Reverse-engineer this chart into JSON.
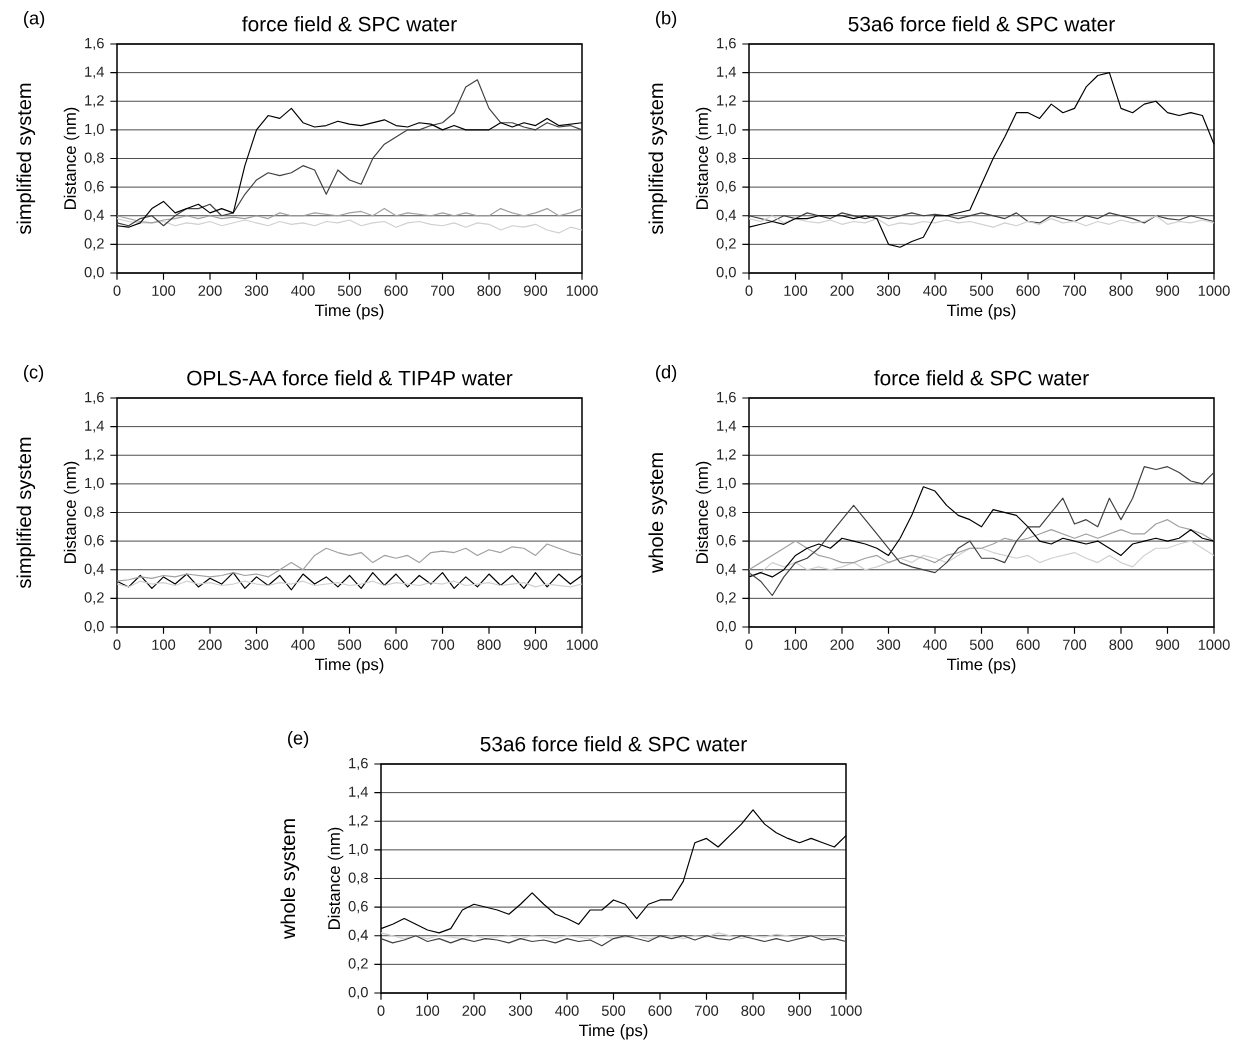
{
  "chart_data": [
    {
      "type": "line",
      "title": "force field & SPC water",
      "xlabel": "Time (ps)",
      "ylabel": "Distance (nm)",
      "annotations": [
        "(a)",
        "simplified system"
      ],
      "grid": "y",
      "xlim": [
        0,
        1000
      ],
      "ylim": [
        0,
        1.6
      ],
      "xticks": [
        0,
        100,
        200,
        300,
        400,
        500,
        600,
        700,
        800,
        900,
        1000
      ],
      "yticks": [
        {
          "value": 0,
          "label": "0,0"
        },
        {
          "value": 0.2,
          "label": "0,2"
        },
        {
          "value": 0.4,
          "label": "0,4"
        },
        {
          "value": 0.6,
          "label": "0,6"
        },
        {
          "value": 0.8,
          "label": "0,8"
        },
        {
          "value": 1.0,
          "label": "1,0"
        },
        {
          "value": 1.2,
          "label": "1,2"
        },
        {
          "value": 1.4,
          "label": "1,4"
        },
        {
          "value": 1.6,
          "label": "1,6"
        }
      ],
      "x": [
        0,
        25,
        50,
        75,
        100,
        125,
        150,
        175,
        200,
        225,
        250,
        275,
        300,
        325,
        350,
        375,
        400,
        425,
        450,
        475,
        500,
        525,
        550,
        575,
        600,
        625,
        650,
        675,
        700,
        725,
        750,
        775,
        800,
        825,
        850,
        875,
        900,
        925,
        950,
        975,
        1000
      ],
      "series": [
        {
          "color": "#d0d0d0",
          "values": [
            0.38,
            0.36,
            0.35,
            0.35,
            0.36,
            0.33,
            0.35,
            0.34,
            0.36,
            0.33,
            0.35,
            0.37,
            0.35,
            0.33,
            0.36,
            0.34,
            0.35,
            0.33,
            0.36,
            0.35,
            0.37,
            0.33,
            0.35,
            0.36,
            0.32,
            0.35,
            0.36,
            0.34,
            0.33,
            0.35,
            0.32,
            0.35,
            0.34,
            0.3,
            0.33,
            0.32,
            0.34,
            0.3,
            0.28,
            0.32,
            0.3
          ]
        },
        {
          "color": "#a0a0a0",
          "values": [
            0.4,
            0.38,
            0.36,
            0.35,
            0.37,
            0.38,
            0.4,
            0.38,
            0.4,
            0.38,
            0.39,
            0.38,
            0.4,
            0.38,
            0.42,
            0.4,
            0.4,
            0.42,
            0.41,
            0.4,
            0.42,
            0.43,
            0.4,
            0.45,
            0.4,
            0.42,
            0.41,
            0.4,
            0.42,
            0.4,
            0.42,
            0.4,
            0.4,
            0.45,
            0.42,
            0.4,
            0.42,
            0.45,
            0.4,
            0.42,
            0.45
          ]
        },
        {
          "color": "#404040",
          "values": [
            0.35,
            0.33,
            0.38,
            0.4,
            0.33,
            0.4,
            0.45,
            0.45,
            0.48,
            0.4,
            0.42,
            0.55,
            0.65,
            0.7,
            0.68,
            0.7,
            0.75,
            0.72,
            0.55,
            0.72,
            0.65,
            0.62,
            0.8,
            0.9,
            0.95,
            1.0,
            1.0,
            1.03,
            1.05,
            1.12,
            1.3,
            1.35,
            1.15,
            1.05,
            1.05,
            1.02,
            1.0,
            1.05,
            1.02,
            1.03,
            1.0
          ]
        },
        {
          "color": "#000000",
          "values": [
            0.33,
            0.32,
            0.35,
            0.45,
            0.5,
            0.42,
            0.45,
            0.48,
            0.42,
            0.45,
            0.42,
            0.75,
            1.0,
            1.1,
            1.08,
            1.15,
            1.05,
            1.02,
            1.03,
            1.06,
            1.04,
            1.03,
            1.05,
            1.07,
            1.03,
            1.02,
            1.05,
            1.04,
            1.0,
            1.03,
            1.0,
            1.0,
            1.0,
            1.05,
            1.02,
            1.05,
            1.03,
            1.08,
            1.03,
            1.04,
            1.05
          ]
        }
      ]
    },
    {
      "type": "line",
      "title": "53a6 force field & SPC water",
      "xlabel": "Time (ps)",
      "ylabel": "Distance (nm)",
      "annotations": [
        "(b)",
        "simplified system"
      ],
      "grid": "y",
      "xlim": [
        0,
        1000
      ],
      "ylim": [
        0,
        1.6
      ],
      "xticks": [
        0,
        100,
        200,
        300,
        400,
        500,
        600,
        700,
        800,
        900,
        1000
      ],
      "yticks": [
        {
          "value": 0,
          "label": "0,0"
        },
        {
          "value": 0.2,
          "label": "0,2"
        },
        {
          "value": 0.4,
          "label": "0,4"
        },
        {
          "value": 0.6,
          "label": "0,6"
        },
        {
          "value": 0.8,
          "label": "0,8"
        },
        {
          "value": 1.0,
          "label": "1,0"
        },
        {
          "value": 1.2,
          "label": "1,2"
        },
        {
          "value": 1.4,
          "label": "1,4"
        },
        {
          "value": 1.6,
          "label": "1,6"
        }
      ],
      "x": [
        0,
        25,
        50,
        75,
        100,
        125,
        150,
        175,
        200,
        225,
        250,
        275,
        300,
        325,
        350,
        375,
        400,
        425,
        450,
        475,
        500,
        525,
        550,
        575,
        600,
        625,
        650,
        675,
        700,
        725,
        750,
        775,
        800,
        825,
        850,
        875,
        900,
        925,
        950,
        975,
        1000
      ],
      "series": [
        {
          "color": "#404040",
          "values": [
            0.4,
            0.38,
            0.36,
            0.4,
            0.38,
            0.42,
            0.4,
            0.38,
            0.42,
            0.4,
            0.38,
            0.4,
            0.38,
            0.4,
            0.42,
            0.4,
            0.41,
            0.4,
            0.38,
            0.4,
            0.42,
            0.4,
            0.38,
            0.42,
            0.36,
            0.35,
            0.4,
            0.38,
            0.36,
            0.4,
            0.38,
            0.42,
            0.4,
            0.38,
            0.35,
            0.4,
            0.38,
            0.37,
            0.4,
            0.38,
            0.36
          ]
        },
        {
          "color": "#d0d0d0",
          "values": [
            0.38,
            0.36,
            0.4,
            0.35,
            0.38,
            0.36,
            0.35,
            0.37,
            0.34,
            0.36,
            0.35,
            0.38,
            0.33,
            0.35,
            0.34,
            0.36,
            0.35,
            0.37,
            0.35,
            0.36,
            0.34,
            0.32,
            0.35,
            0.33,
            0.36,
            0.34,
            0.38,
            0.35,
            0.36,
            0.33,
            0.36,
            0.34,
            0.37,
            0.35,
            0.36,
            0.4,
            0.34,
            0.36,
            0.35,
            0.37,
            0.35
          ]
        },
        {
          "color": "#000000",
          "values": [
            0.32,
            0.34,
            0.36,
            0.34,
            0.38,
            0.38,
            0.4,
            0.4,
            0.4,
            0.38,
            0.4,
            0.38,
            0.2,
            0.18,
            0.22,
            0.25,
            0.4,
            0.4,
            0.42,
            0.44,
            0.62,
            0.8,
            0.95,
            1.12,
            1.12,
            1.08,
            1.18,
            1.12,
            1.15,
            1.3,
            1.38,
            1.4,
            1.15,
            1.12,
            1.18,
            1.2,
            1.12,
            1.1,
            1.12,
            1.1,
            0.9
          ]
        }
      ]
    },
    {
      "type": "line",
      "title": "OPLS-AA force field & TIP4P water",
      "xlabel": "Time (ps)",
      "ylabel": "Distance (nm)",
      "annotations": [
        "(c)",
        "simplified system"
      ],
      "grid": "y",
      "xlim": [
        0,
        1000
      ],
      "ylim": [
        0,
        1.6
      ],
      "xticks": [
        0,
        100,
        200,
        300,
        400,
        500,
        600,
        700,
        800,
        900,
        1000
      ],
      "yticks": [
        {
          "value": 0,
          "label": "0,0"
        },
        {
          "value": 0.2,
          "label": "0,2"
        },
        {
          "value": 0.4,
          "label": "0,4"
        },
        {
          "value": 0.6,
          "label": "0,6"
        },
        {
          "value": 0.8,
          "label": "0,8"
        },
        {
          "value": 1.0,
          "label": "1,0"
        },
        {
          "value": 1.2,
          "label": "1,2"
        },
        {
          "value": 1.4,
          "label": "1,4"
        },
        {
          "value": 1.6,
          "label": "1,6"
        }
      ],
      "x": [
        0,
        25,
        50,
        75,
        100,
        125,
        150,
        175,
        200,
        225,
        250,
        275,
        300,
        325,
        350,
        375,
        400,
        425,
        450,
        475,
        500,
        525,
        550,
        575,
        600,
        625,
        650,
        675,
        700,
        725,
        750,
        775,
        800,
        825,
        850,
        875,
        900,
        925,
        950,
        975,
        1000
      ],
      "series": [
        {
          "color": "#000000",
          "values": [
            0.32,
            0.28,
            0.36,
            0.27,
            0.35,
            0.3,
            0.37,
            0.28,
            0.34,
            0.3,
            0.38,
            0.27,
            0.35,
            0.29,
            0.36,
            0.26,
            0.37,
            0.3,
            0.35,
            0.28,
            0.36,
            0.27,
            0.38,
            0.29,
            0.37,
            0.28,
            0.36,
            0.3,
            0.38,
            0.27,
            0.35,
            0.28,
            0.37,
            0.29,
            0.36,
            0.27,
            0.38,
            0.28,
            0.37,
            0.3,
            0.36
          ]
        },
        {
          "color": "#d0d0d0",
          "values": [
            0.3,
            0.28,
            0.32,
            0.3,
            0.31,
            0.29,
            0.32,
            0.3,
            0.31,
            0.29,
            0.3,
            0.32,
            0.3,
            0.29,
            0.31,
            0.3,
            0.32,
            0.29,
            0.3,
            0.31,
            0.29,
            0.3,
            0.32,
            0.29,
            0.31,
            0.3,
            0.29,
            0.31,
            0.3,
            0.32,
            0.29,
            0.3,
            0.31,
            0.29,
            0.3,
            0.31,
            0.28,
            0.3,
            0.29,
            0.28,
            0.3
          ]
        },
        {
          "color": "#a0a0a0",
          "values": [
            0.32,
            0.33,
            0.35,
            0.34,
            0.36,
            0.35,
            0.37,
            0.36,
            0.35,
            0.36,
            0.38,
            0.36,
            0.37,
            0.35,
            0.4,
            0.45,
            0.4,
            0.5,
            0.55,
            0.52,
            0.5,
            0.52,
            0.45,
            0.5,
            0.48,
            0.5,
            0.45,
            0.52,
            0.53,
            0.52,
            0.55,
            0.5,
            0.54,
            0.52,
            0.56,
            0.55,
            0.5,
            0.58,
            0.55,
            0.52,
            0.5
          ]
        }
      ]
    },
    {
      "type": "line",
      "title": "force field & SPC water",
      "xlabel": "Time (ps)",
      "ylabel": "Distance (nm)",
      "annotations": [
        "(d)",
        "whole system"
      ],
      "grid": "y",
      "xlim": [
        0,
        1000
      ],
      "ylim": [
        0,
        1.6
      ],
      "xticks": [
        0,
        100,
        200,
        300,
        400,
        500,
        600,
        700,
        800,
        900,
        1000
      ],
      "yticks": [
        {
          "value": 0,
          "label": "0,0"
        },
        {
          "value": 0.2,
          "label": "0,2"
        },
        {
          "value": 0.4,
          "label": "0,4"
        },
        {
          "value": 0.6,
          "label": "0,6"
        },
        {
          "value": 0.8,
          "label": "0,8"
        },
        {
          "value": 1.0,
          "label": "1,0"
        },
        {
          "value": 1.2,
          "label": "1,2"
        },
        {
          "value": 1.4,
          "label": "1,4"
        },
        {
          "value": 1.6,
          "label": "1,6"
        }
      ],
      "x": [
        0,
        25,
        50,
        75,
        100,
        125,
        150,
        175,
        200,
        225,
        250,
        275,
        300,
        325,
        350,
        375,
        400,
        425,
        450,
        475,
        500,
        525,
        550,
        575,
        600,
        625,
        650,
        675,
        700,
        725,
        750,
        775,
        800,
        825,
        850,
        875,
        900,
        925,
        950,
        975,
        1000
      ],
      "series": [
        {
          "color": "#d0d0d0",
          "values": [
            0.35,
            0.38,
            0.45,
            0.42,
            0.45,
            0.4,
            0.42,
            0.4,
            0.42,
            0.45,
            0.4,
            0.42,
            0.45,
            0.48,
            0.45,
            0.5,
            0.48,
            0.45,
            0.5,
            0.55,
            0.55,
            0.52,
            0.5,
            0.48,
            0.5,
            0.45,
            0.48,
            0.5,
            0.52,
            0.48,
            0.45,
            0.5,
            0.45,
            0.42,
            0.5,
            0.55,
            0.55,
            0.58,
            0.6,
            0.55,
            0.5
          ]
        },
        {
          "color": "#a0a0a0",
          "values": [
            0.4,
            0.45,
            0.5,
            0.55,
            0.6,
            0.55,
            0.5,
            0.48,
            0.45,
            0.45,
            0.48,
            0.5,
            0.45,
            0.48,
            0.5,
            0.48,
            0.45,
            0.5,
            0.52,
            0.55,
            0.55,
            0.58,
            0.62,
            0.6,
            0.62,
            0.65,
            0.68,
            0.65,
            0.62,
            0.65,
            0.62,
            0.65,
            0.68,
            0.65,
            0.65,
            0.72,
            0.75,
            0.7,
            0.68,
            0.65,
            0.6
          ]
        },
        {
          "color": "#000000",
          "values": [
            0.35,
            0.38,
            0.35,
            0.4,
            0.5,
            0.55,
            0.58,
            0.55,
            0.62,
            0.6,
            0.58,
            0.55,
            0.5,
            0.62,
            0.78,
            0.98,
            0.95,
            0.85,
            0.78,
            0.75,
            0.7,
            0.82,
            0.8,
            0.78,
            0.7,
            0.6,
            0.58,
            0.62,
            0.6,
            0.58,
            0.6,
            0.55,
            0.5,
            0.58,
            0.6,
            0.62,
            0.6,
            0.62,
            0.68,
            0.62,
            0.6
          ]
        },
        {
          "color": "#404040",
          "values": [
            0.38,
            0.32,
            0.22,
            0.35,
            0.45,
            0.48,
            0.55,
            0.65,
            0.75,
            0.85,
            0.75,
            0.65,
            0.55,
            0.45,
            0.42,
            0.4,
            0.38,
            0.45,
            0.55,
            0.6,
            0.48,
            0.48,
            0.45,
            0.6,
            0.7,
            0.7,
            0.8,
            0.9,
            0.72,
            0.75,
            0.7,
            0.9,
            0.75,
            0.9,
            1.12,
            1.1,
            1.12,
            1.08,
            1.02,
            1.0,
            1.08
          ]
        }
      ]
    },
    {
      "type": "line",
      "title": "53a6 force field & SPC water",
      "xlabel": "Time (ps)",
      "ylabel": "Distance (nm)",
      "annotations": [
        "(e)",
        "whole system"
      ],
      "grid": "y",
      "xlim": [
        0,
        1000
      ],
      "ylim": [
        0,
        1.6
      ],
      "xticks": [
        0,
        100,
        200,
        300,
        400,
        500,
        600,
        700,
        800,
        900,
        1000
      ],
      "yticks": [
        {
          "value": 0,
          "label": "0,0"
        },
        {
          "value": 0.2,
          "label": "0,2"
        },
        {
          "value": 0.4,
          "label": "0,4"
        },
        {
          "value": 0.6,
          "label": "0,6"
        },
        {
          "value": 0.8,
          "label": "0,8"
        },
        {
          "value": 1.0,
          "label": "1,0"
        },
        {
          "value": 1.2,
          "label": "1,2"
        },
        {
          "value": 1.4,
          "label": "1,4"
        },
        {
          "value": 1.6,
          "label": "1,6"
        }
      ],
      "x": [
        0,
        25,
        50,
        75,
        100,
        125,
        150,
        175,
        200,
        225,
        250,
        275,
        300,
        325,
        350,
        375,
        400,
        425,
        450,
        475,
        500,
        525,
        550,
        575,
        600,
        625,
        650,
        675,
        700,
        725,
        750,
        775,
        800,
        825,
        850,
        875,
        900,
        925,
        950,
        975,
        1000
      ],
      "series": [
        {
          "color": "#d0d0d0",
          "values": [
            0.42,
            0.4,
            0.38,
            0.4,
            0.38,
            0.4,
            0.39,
            0.38,
            0.4,
            0.38,
            0.39,
            0.4,
            0.38,
            0.4,
            0.39,
            0.38,
            0.4,
            0.39,
            0.38,
            0.4,
            0.38,
            0.39,
            0.4,
            0.38,
            0.39,
            0.4,
            0.38,
            0.4,
            0.39,
            0.42,
            0.4,
            0.38,
            0.4,
            0.39,
            0.41,
            0.4,
            0.38,
            0.4,
            0.39,
            0.38,
            0.4
          ]
        },
        {
          "color": "#404040",
          "values": [
            0.38,
            0.35,
            0.37,
            0.4,
            0.36,
            0.38,
            0.35,
            0.38,
            0.36,
            0.38,
            0.37,
            0.35,
            0.38,
            0.36,
            0.37,
            0.35,
            0.38,
            0.36,
            0.37,
            0.33,
            0.38,
            0.4,
            0.38,
            0.36,
            0.4,
            0.38,
            0.4,
            0.37,
            0.4,
            0.38,
            0.37,
            0.4,
            0.38,
            0.36,
            0.38,
            0.36,
            0.38,
            0.4,
            0.37,
            0.38,
            0.36
          ]
        },
        {
          "color": "#000000",
          "values": [
            0.45,
            0.48,
            0.52,
            0.48,
            0.44,
            0.42,
            0.45,
            0.58,
            0.62,
            0.6,
            0.58,
            0.55,
            0.62,
            0.7,
            0.62,
            0.55,
            0.52,
            0.48,
            0.58,
            0.58,
            0.65,
            0.62,
            0.52,
            0.62,
            0.65,
            0.65,
            0.78,
            1.05,
            1.08,
            1.02,
            1.1,
            1.18,
            1.28,
            1.18,
            1.12,
            1.08,
            1.05,
            1.08,
            1.05,
            1.02,
            1.1
          ]
        }
      ]
    }
  ]
}
